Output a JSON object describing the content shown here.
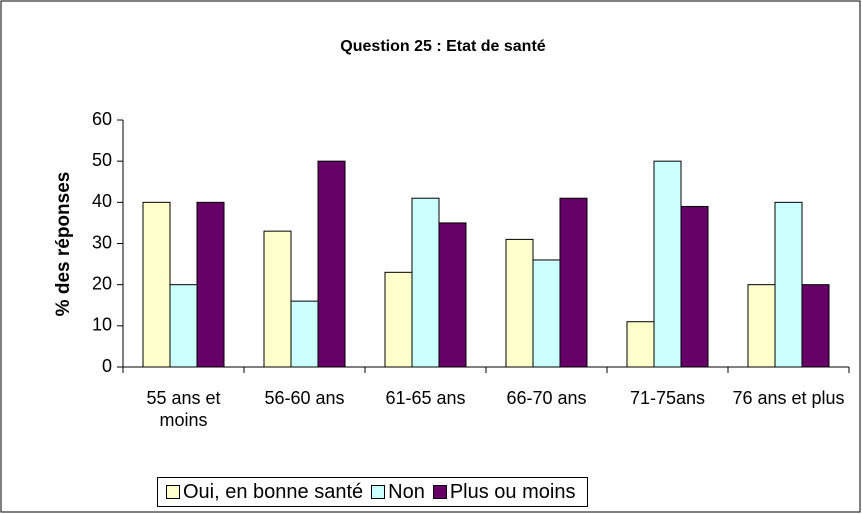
{
  "chart_data": {
    "type": "bar",
    "title": "Question 25 : Etat de santé",
    "y_label": "% des réponses",
    "categories": [
      "55 ans  et moins",
      "56-60 ans",
      "61-65 ans",
      "66-70 ans",
      "71-75ans",
      "76 ans et plus"
    ],
    "series": [
      {
        "name": "Oui, en bonne santé",
        "color": "#ffffcc",
        "values": [
          40,
          33,
          23,
          31,
          11,
          20
        ]
      },
      {
        "name": "Non",
        "color": "#ccffff",
        "values": [
          20,
          16,
          41,
          26,
          50,
          40
        ]
      },
      {
        "name": "Plus ou moins",
        "color": "#660066",
        "values": [
          40,
          50,
          35,
          41,
          39,
          20
        ]
      }
    ],
    "ylim": [
      0,
      60
    ],
    "yticks": [
      0,
      10,
      20,
      30,
      40,
      50,
      60
    ],
    "grid": false,
    "legend": "bottom"
  }
}
